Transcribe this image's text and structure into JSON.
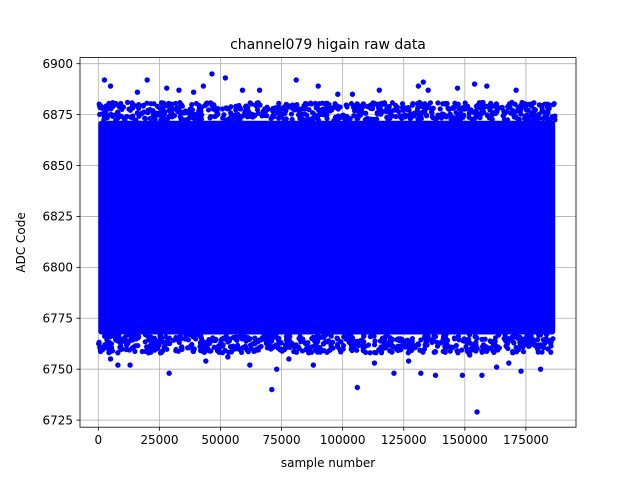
{
  "chart_data": {
    "type": "scatter",
    "title": "channel079 higain raw data",
    "xlabel": "sample number",
    "ylabel": "ADC Code",
    "xlim": [
      -7500,
      195500
    ],
    "ylim": [
      6721.5,
      6903
    ],
    "xticks": [
      0,
      25000,
      50000,
      75000,
      100000,
      125000,
      150000,
      175000
    ],
    "xtick_labels": [
      "0",
      "25000",
      "50000",
      "75000",
      "100000",
      "125000",
      "150000",
      "175000"
    ],
    "yticks": [
      6725,
      6750,
      6775,
      6800,
      6825,
      6850,
      6875,
      6900
    ],
    "ytick_labels": [
      "6725",
      "6750",
      "6775",
      "6800",
      "6825",
      "6850",
      "6875",
      "6900"
    ],
    "grid": true,
    "marker_color": "#0000ff",
    "x_range": [
      0,
      187000
    ],
    "dense_band": [
      6767,
      6872
    ],
    "outliers": [
      {
        "x": 2500,
        "y": 6892
      },
      {
        "x": 5000,
        "y": 6889
      },
      {
        "x": 16000,
        "y": 6886
      },
      {
        "x": 20000,
        "y": 6892
      },
      {
        "x": 28000,
        "y": 6888
      },
      {
        "x": 33000,
        "y": 6887
      },
      {
        "x": 39000,
        "y": 6886
      },
      {
        "x": 43000,
        "y": 6889
      },
      {
        "x": 46500,
        "y": 6895
      },
      {
        "x": 52000,
        "y": 6893
      },
      {
        "x": 59000,
        "y": 6887
      },
      {
        "x": 66000,
        "y": 6887
      },
      {
        "x": 81000,
        "y": 6892
      },
      {
        "x": 90000,
        "y": 6889
      },
      {
        "x": 98000,
        "y": 6885
      },
      {
        "x": 104000,
        "y": 6885
      },
      {
        "x": 115000,
        "y": 6887
      },
      {
        "x": 131000,
        "y": 6889
      },
      {
        "x": 133000,
        "y": 6891
      },
      {
        "x": 135000,
        "y": 6887
      },
      {
        "x": 147000,
        "y": 6888
      },
      {
        "x": 154000,
        "y": 6890
      },
      {
        "x": 159000,
        "y": 6889
      },
      {
        "x": 171000,
        "y": 6887
      },
      {
        "x": 5000,
        "y": 6755
      },
      {
        "x": 8000,
        "y": 6752
      },
      {
        "x": 13000,
        "y": 6752
      },
      {
        "x": 29000,
        "y": 6748
      },
      {
        "x": 44000,
        "y": 6754
      },
      {
        "x": 53000,
        "y": 6756
      },
      {
        "x": 62000,
        "y": 6752
      },
      {
        "x": 71000,
        "y": 6740
      },
      {
        "x": 73000,
        "y": 6750
      },
      {
        "x": 78000,
        "y": 6755
      },
      {
        "x": 88000,
        "y": 6752
      },
      {
        "x": 106000,
        "y": 6741
      },
      {
        "x": 113000,
        "y": 6753
      },
      {
        "x": 121000,
        "y": 6748
      },
      {
        "x": 127000,
        "y": 6754
      },
      {
        "x": 132000,
        "y": 6748
      },
      {
        "x": 138000,
        "y": 6747
      },
      {
        "x": 149000,
        "y": 6747
      },
      {
        "x": 152000,
        "y": 6757
      },
      {
        "x": 155000,
        "y": 6729
      },
      {
        "x": 157000,
        "y": 6747
      },
      {
        "x": 163000,
        "y": 6751
      },
      {
        "x": 168000,
        "y": 6753
      },
      {
        "x": 173000,
        "y": 6749
      },
      {
        "x": 181000,
        "y": 6750
      }
    ]
  }
}
